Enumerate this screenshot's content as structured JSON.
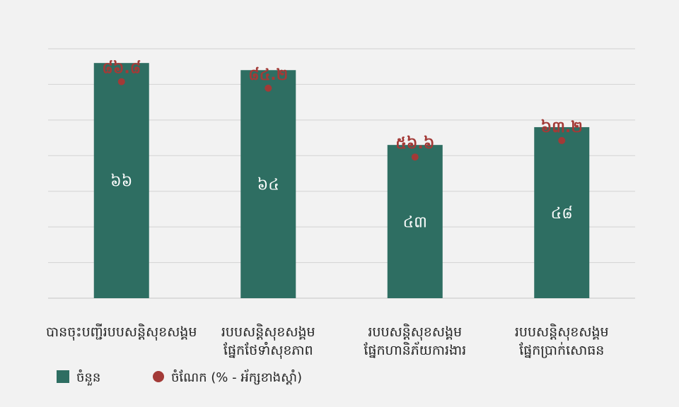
{
  "chart_data": {
    "type": "bar",
    "categories": [
      [
        "បានចុះបញ្ជីរបបសន្តិសុខសង្គម"
      ],
      [
        "របបសន្តិសុខសង្គម",
        "ផ្នែកថែទាំសុខភាព"
      ],
      [
        "របបសន្តិសុខសង្គម",
        "ផ្នែកហានិភ័យការងារ"
      ],
      [
        "របបសន្តិសុខសង្គម",
        "ផ្នែកប្រាក់សោធន"
      ]
    ],
    "series": [
      {
        "name": "ចំនួន",
        "kind": "bar",
        "color": "#2e6e62",
        "values": [
          66,
          64,
          43,
          48
        ],
        "labels": [
          "៦៦",
          "៦៤",
          "៤៣",
          "៤៨"
        ]
      },
      {
        "name": "ចំណែក (% - អ័ក្សខាងស្តាំ)",
        "kind": "scatter",
        "color": "#a33a37",
        "values": [
          86.8,
          84.2,
          56.6,
          63.2
        ],
        "labels": [
          "៨៦.៨",
          "៨៤.២",
          "៥៦.៦",
          "៦៣.២"
        ]
      }
    ],
    "y_left": {
      "min": 0,
      "max": 70
    },
    "y_right": {
      "min": 0,
      "max": 100
    },
    "grid": true,
    "legend": "bottom-left"
  }
}
